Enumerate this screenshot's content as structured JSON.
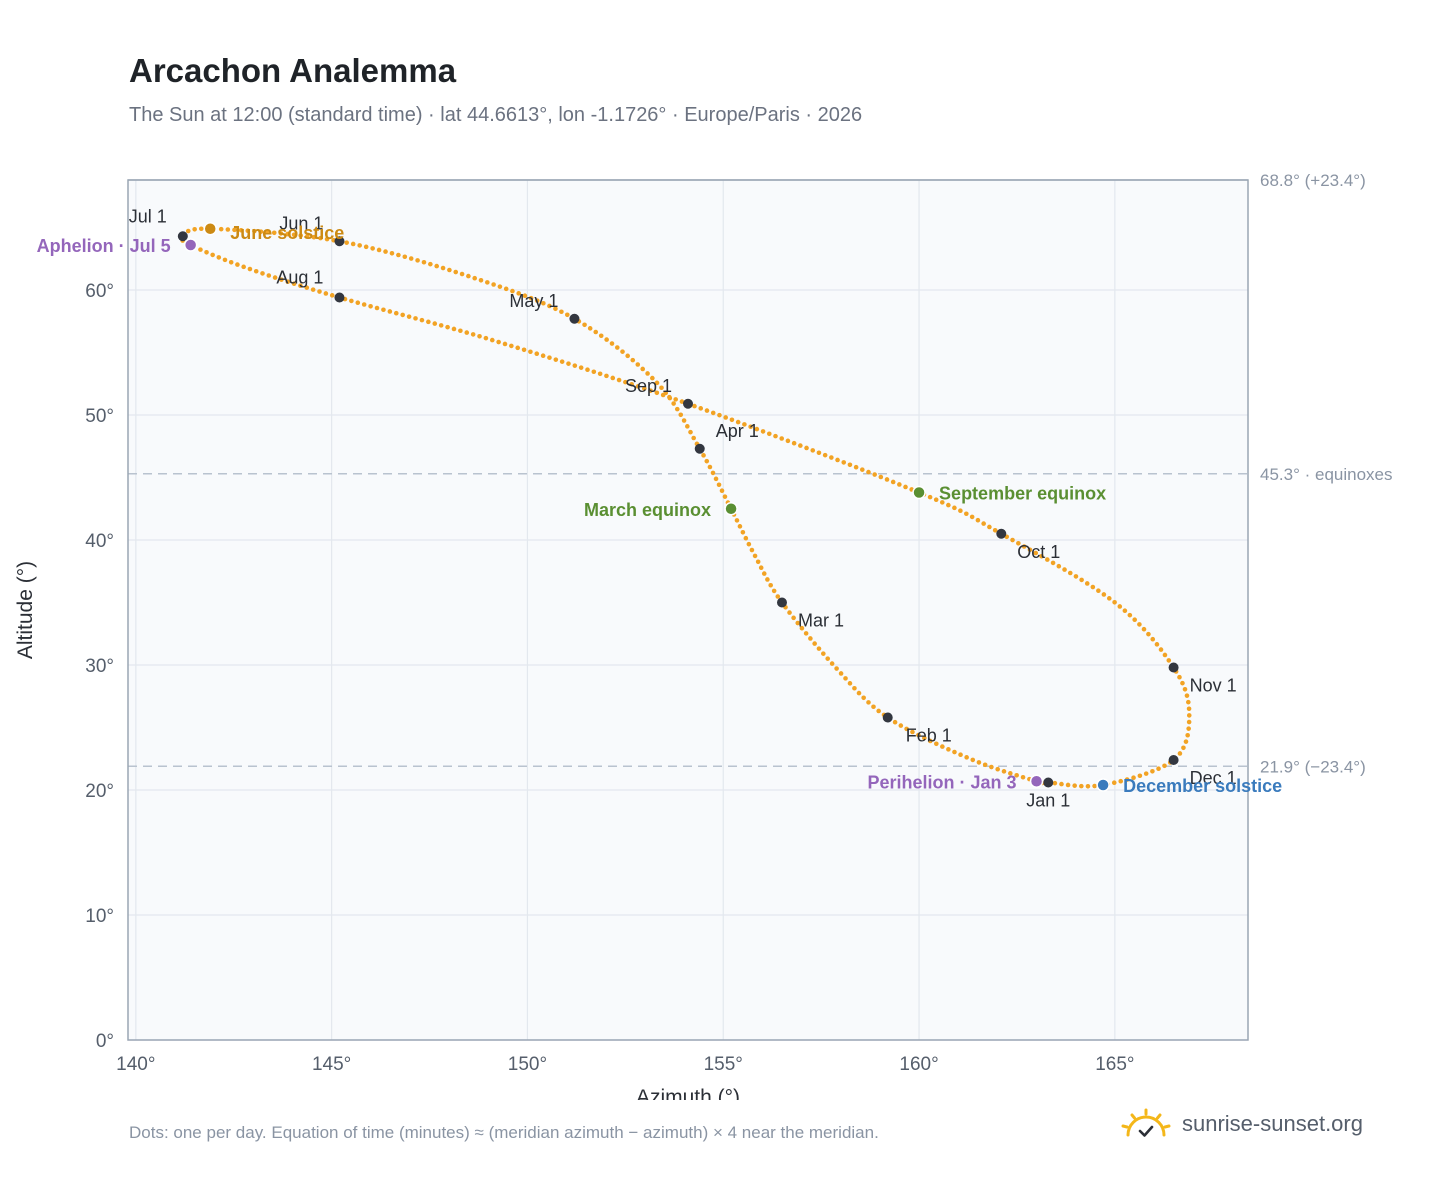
{
  "header": {
    "title": "Arcachon Analemma",
    "subtitle": "The Sun at 12:00 (standard time) · lat 44.6613°, lon -1.1726° · Europe/Paris · 2026"
  },
  "footer": {
    "note": "Dots: one per day. Equation of time (minutes) ≈ (meridian azimuth − azimuth) × 4 near the meridian.",
    "brand": "sunrise-sunset.org"
  },
  "colors": {
    "curve": "#f2a324",
    "month_marker": "#333740",
    "equinox": "#5a8f32",
    "june_solstice": "#cc8a14",
    "december_solstice": "#3a7bbd",
    "apsis": "#9466bb",
    "grid": "#e3e8ee",
    "plot_bg": "#f8fafc",
    "axis_text": "#555e6b",
    "reference_line": "#b9c3cf",
    "brand_sun": "#f4b71a"
  },
  "chart_data": {
    "type": "scatter",
    "xlabel": "Azimuth (°)",
    "ylabel": "Altitude (°)",
    "xlim": [
      139.8,
      168.4
    ],
    "ylim": [
      0,
      68.8
    ],
    "xticks": [
      140,
      145,
      150,
      155,
      160,
      165
    ],
    "yticks": [
      0,
      10,
      20,
      30,
      40,
      50,
      60
    ],
    "tick_suffix": "°",
    "grid": true,
    "series": [
      {
        "name": "",
        "style": "dots-one-per-day",
        "anchors": [
          {
            "date": "Jan 1",
            "az": 163.3,
            "alt": 20.6
          },
          {
            "date": "Jan 3",
            "az": 163.0,
            "alt": 20.7
          },
          {
            "date": "Jan 15",
            "az": 161.3,
            "alt": 22.5
          },
          {
            "date": "Feb 1",
            "az": 159.2,
            "alt": 25.8
          },
          {
            "date": "Feb 15",
            "az": 157.9,
            "alt": 29.7
          },
          {
            "date": "Mar 1",
            "az": 156.5,
            "alt": 35.0
          },
          {
            "date": "Mar 10",
            "az": 155.8,
            "alt": 38.8
          },
          {
            "date": "Mar 20",
            "az": 155.2,
            "alt": 42.5
          },
          {
            "date": "Apr 1",
            "az": 154.4,
            "alt": 47.3
          },
          {
            "date": "Apr 15",
            "az": 153.3,
            "alt": 52.6
          },
          {
            "date": "May 1",
            "az": 151.2,
            "alt": 57.7
          },
          {
            "date": "May 15",
            "az": 148.6,
            "alt": 61.0
          },
          {
            "date": "Jun 1",
            "az": 145.2,
            "alt": 63.9
          },
          {
            "date": "Jun 21",
            "az": 141.9,
            "alt": 64.9
          },
          {
            "date": "Jul 1",
            "az": 141.2,
            "alt": 64.3
          },
          {
            "date": "Jul 5",
            "az": 141.4,
            "alt": 63.6
          },
          {
            "date": "Jul 15",
            "az": 142.8,
            "alt": 61.8
          },
          {
            "date": "Aug 1",
            "az": 145.2,
            "alt": 59.4
          },
          {
            "date": "Aug 15",
            "az": 149.2,
            "alt": 55.9
          },
          {
            "date": "Sep 1",
            "az": 154.1,
            "alt": 50.9
          },
          {
            "date": "Sep 23",
            "az": 160.0,
            "alt": 43.8
          },
          {
            "date": "Oct 1",
            "az": 162.1,
            "alt": 40.5
          },
          {
            "date": "Oct 15",
            "az": 165.0,
            "alt": 35.0
          },
          {
            "date": "Nov 1",
            "az": 166.5,
            "alt": 29.8
          },
          {
            "date": "Nov 15",
            "az": 166.9,
            "alt": 26.0
          },
          {
            "date": "Dec 1",
            "az": 166.5,
            "alt": 22.4
          },
          {
            "date": "Dec 21",
            "az": 164.7,
            "alt": 20.4
          },
          {
            "date": "Jan 1",
            "az": 163.3,
            "alt": 20.6
          }
        ]
      }
    ],
    "month_markers": [
      {
        "label": "Jan 1",
        "az": 163.3,
        "alt": 20.6
      },
      {
        "label": "Feb 1",
        "az": 159.2,
        "alt": 25.8
      },
      {
        "label": "Mar 1",
        "az": 156.5,
        "alt": 35.0
      },
      {
        "label": "Apr 1",
        "az": 154.4,
        "alt": 47.3
      },
      {
        "label": "May 1",
        "az": 151.2,
        "alt": 57.7
      },
      {
        "label": "Jun 1",
        "az": 145.2,
        "alt": 63.9
      },
      {
        "label": "Jul 1",
        "az": 141.2,
        "alt": 64.3
      },
      {
        "label": "Aug 1",
        "az": 145.2,
        "alt": 59.4
      },
      {
        "label": "Sep 1",
        "az": 154.1,
        "alt": 50.9
      },
      {
        "label": "Oct 1",
        "az": 162.1,
        "alt": 40.5
      },
      {
        "label": "Nov 1",
        "az": 166.5,
        "alt": 29.8
      },
      {
        "label": "Dec 1",
        "az": 166.5,
        "alt": 22.4
      }
    ],
    "events": [
      {
        "label": "June solstice",
        "az": 141.9,
        "alt": 64.9,
        "color": "#cc8a14"
      },
      {
        "label": "Aphelion · Jul 5",
        "az": 141.4,
        "alt": 63.6,
        "color": "#9466bb"
      },
      {
        "label": "March equinox",
        "az": 155.2,
        "alt": 42.5,
        "color": "#5a8f32"
      },
      {
        "label": "September equinox",
        "az": 160.0,
        "alt": 43.8,
        "color": "#5a8f32"
      },
      {
        "label": "Perihelion · Jan 3",
        "az": 163.0,
        "alt": 20.7,
        "color": "#9466bb"
      },
      {
        "label": "December solstice",
        "az": 164.7,
        "alt": 20.4,
        "color": "#3a7bbd"
      }
    ],
    "reference_lines": [
      {
        "alt": 68.8,
        "label": "68.8° (+23.4°)",
        "style": "solid"
      },
      {
        "alt": 45.3,
        "label": "45.3° · equinoxes",
        "style": "dashed"
      },
      {
        "alt": 21.9,
        "label": "21.9° (−23.4°)",
        "style": "dashed"
      }
    ]
  }
}
